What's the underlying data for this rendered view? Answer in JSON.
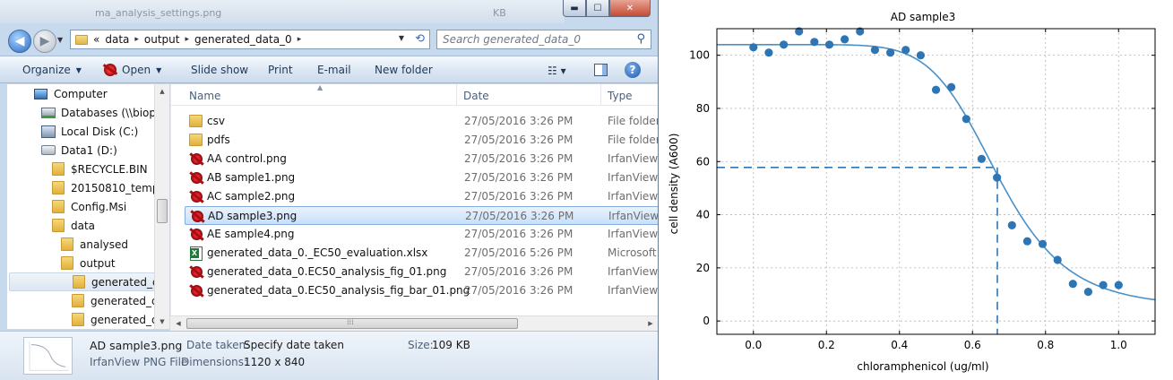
{
  "background_window": {
    "visible_filename_fragment": "ma_analysis_settings.png",
    "visible_size_fragment": "KB"
  },
  "explorer": {
    "caption_buttons": {
      "minimize": "▬",
      "maximize": "☐",
      "close": "✕"
    },
    "address": {
      "overflow_glyph": "«",
      "crumbs": [
        "data",
        "output",
        "generated_data_0"
      ],
      "separator": "▸"
    },
    "search": {
      "placeholder": "Search generated_data_0"
    },
    "toolbar": {
      "organize": "Organize",
      "open": "Open",
      "slideshow": "Slide show",
      "print": "Print",
      "email": "E-mail",
      "new_folder": "New folder",
      "help": "?"
    },
    "nav_items": [
      {
        "label": "Computer",
        "icon": "computer-icon"
      },
      {
        "label": "Databases (\\\\biopol",
        "icon": "network-drive-icon"
      },
      {
        "label": "Local Disk (C:)",
        "icon": "local-disk-icon"
      },
      {
        "label": "Data1 (D:)",
        "icon": "drive-icon"
      },
      {
        "label": "$RECYCLE.BIN",
        "icon": "folder-icon"
      },
      {
        "label": "20150810_temp",
        "icon": "folder-icon"
      },
      {
        "label": "Config.Msi",
        "icon": "folder-icon"
      },
      {
        "label": "data",
        "icon": "folder-icon"
      },
      {
        "label": "analysed",
        "icon": "folder-icon"
      },
      {
        "label": "output",
        "icon": "folder-icon"
      },
      {
        "label": "generated_dat",
        "icon": "folder-icon"
      },
      {
        "label": "generated_dat",
        "icon": "folder-icon"
      },
      {
        "label": "generated_dat",
        "icon": "folder-icon"
      }
    ],
    "columns": {
      "name": "Name",
      "date": "Date",
      "type": "Type"
    },
    "files": [
      {
        "name": "csv",
        "date": "27/05/2016 3:26 PM",
        "type": "File folder",
        "icon": "folder-icon"
      },
      {
        "name": "pdfs",
        "date": "27/05/2016 3:26 PM",
        "type": "File folder",
        "icon": "folder-icon"
      },
      {
        "name": "AA control.png",
        "date": "27/05/2016 3:26 PM",
        "type": "IrfanView",
        "icon": "irfanview-icon"
      },
      {
        "name": "AB sample1.png",
        "date": "27/05/2016 3:26 PM",
        "type": "IrfanView",
        "icon": "irfanview-icon"
      },
      {
        "name": "AC sample2.png",
        "date": "27/05/2016 3:26 PM",
        "type": "IrfanView",
        "icon": "irfanview-icon"
      },
      {
        "name": "AD sample3.png",
        "date": "27/05/2016 3:26 PM",
        "type": "IrfanView",
        "icon": "irfanview-icon",
        "selected": true
      },
      {
        "name": "AE sample4.png",
        "date": "27/05/2016 3:26 PM",
        "type": "IrfanView",
        "icon": "irfanview-icon"
      },
      {
        "name": "generated_data_0._EC50_evaluation.xlsx",
        "date": "27/05/2016 5:26 PM",
        "type": "Microsoft",
        "icon": "excel-icon"
      },
      {
        "name": "generated_data_0.EC50_analysis_fig_01.png",
        "date": "27/05/2016 3:26 PM",
        "type": "IrfanView",
        "icon": "irfanview-icon"
      },
      {
        "name": "generated_data_0.EC50_analysis_fig_bar_01.png",
        "date": "27/05/2016 3:26 PM",
        "type": "IrfanView",
        "icon": "irfanview-icon"
      }
    ],
    "details": {
      "filename": "AD sample3.png",
      "filetype": "IrfanView PNG File",
      "date_taken_label": "Date taken:",
      "date_taken_value": "Specify date taken",
      "dimensions_label": "Dimensions:",
      "dimensions_value": "1120 x 840",
      "size_label": "Size:",
      "size_value": "109 KB"
    }
  },
  "chart_data": {
    "type": "scatter",
    "title": "AD   sample3",
    "xlabel": "chloramphenicol (ug/ml)",
    "ylabel": "cell density (A600)",
    "xlim": [
      -0.1,
      1.1
    ],
    "ylim": [
      -5,
      110
    ],
    "xticks": [
      0.0,
      0.2,
      0.4,
      0.6,
      0.8,
      1.0
    ],
    "xtick_labels": [
      "0.0",
      "0.2",
      "0.4",
      "0.6",
      "0.8",
      "1.0"
    ],
    "yticks": [
      0,
      20,
      40,
      60,
      80,
      100
    ],
    "ytick_labels": [
      "0",
      "20",
      "40",
      "60",
      "80",
      "100"
    ],
    "grid": true,
    "colors": {
      "points": "#2e75b6",
      "fit_line": "#4a90c8",
      "ec50_guide": "#2e75b6"
    },
    "points": {
      "x": [
        0.0,
        0.042,
        0.083,
        0.125,
        0.167,
        0.208,
        0.25,
        0.292,
        0.333,
        0.375,
        0.417,
        0.458,
        0.5,
        0.542,
        0.583,
        0.625,
        0.667,
        0.708,
        0.75,
        0.792,
        0.833,
        0.875,
        0.917,
        0.958,
        1.0
      ],
      "y": [
        103,
        101,
        104,
        109,
        105,
        104,
        106,
        109,
        102,
        101,
        102,
        100,
        87,
        88,
        76,
        61,
        54,
        36,
        30,
        29,
        23,
        14,
        11,
        13.5,
        13.5
      ]
    },
    "fit": {
      "type": "logistic",
      "top": 104,
      "bottom": 5,
      "ec50": 0.67,
      "hill": 7
    },
    "ec50_guide": {
      "x": 0.668,
      "y": 57.8
    }
  }
}
